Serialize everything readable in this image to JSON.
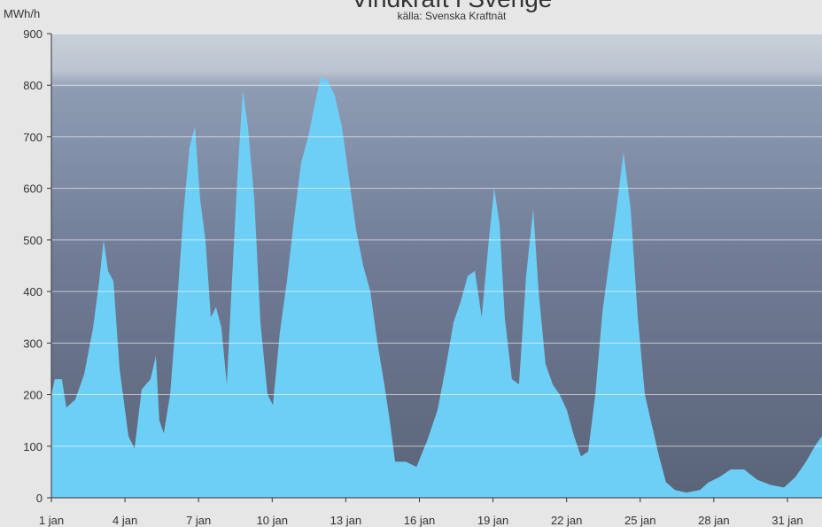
{
  "chart_data": {
    "type": "area",
    "title": "Vindkraft i Sverige",
    "subtitle": "källa: Svenska Kraftnät",
    "y_label": "MWh/h",
    "color": "#6dcff6",
    "grid": true,
    "x": [
      1.0,
      1.14,
      1.43,
      1.61,
      1.97,
      2.34,
      2.7,
      2.95,
      3.13,
      3.31,
      3.53,
      3.78,
      4.14,
      4.39,
      4.68,
      5.04,
      5.26,
      5.4,
      5.58,
      5.84,
      6.13,
      6.38,
      6.63,
      6.85,
      7.06,
      7.28,
      7.5,
      7.71,
      7.93,
      8.15,
      8.36,
      8.58,
      8.8,
      9.01,
      9.27,
      9.52,
      9.81,
      10.03,
      10.31,
      10.6,
      10.89,
      11.18,
      11.47,
      11.72,
      11.97,
      12.26,
      12.55,
      12.84,
      13.13,
      13.42,
      13.71,
      14.0,
      14.29,
      14.57,
      14.79,
      15.01,
      15.45,
      15.88,
      16.31,
      16.74,
      17.1,
      17.39,
      17.68,
      17.97,
      18.26,
      18.54,
      18.83,
      19.05,
      19.27,
      19.48,
      19.77,
      20.06,
      20.35,
      20.64,
      20.86,
      21.14,
      21.43,
      21.72,
      22.01,
      22.3,
      22.59,
      22.88,
      23.17,
      23.46,
      23.74,
      24.03,
      24.32,
      24.61,
      24.9,
      25.19,
      25.48,
      25.77,
      26.05,
      26.42,
      26.88,
      27.43,
      27.79,
      28.22,
      28.69,
      29.23,
      29.77,
      30.31,
      30.86,
      31.32,
      31.76,
      32.12,
      32.41
    ],
    "values": [
      200,
      230,
      230,
      175,
      190,
      240,
      330,
      420,
      500,
      440,
      420,
      250,
      120,
      95,
      210,
      230,
      275,
      150,
      125,
      200,
      380,
      550,
      680,
      720,
      580,
      500,
      350,
      370,
      330,
      220,
      420,
      620,
      790,
      720,
      580,
      340,
      200,
      180,
      320,
      420,
      540,
      650,
      700,
      760,
      815,
      810,
      780,
      720,
      620,
      520,
      450,
      400,
      300,
      220,
      150,
      70,
      70,
      60,
      110,
      170,
      260,
      340,
      380,
      430,
      440,
      350,
      500,
      600,
      530,
      350,
      230,
      220,
      430,
      560,
      400,
      260,
      220,
      200,
      170,
      120,
      80,
      90,
      200,
      360,
      460,
      560,
      670,
      560,
      350,
      200,
      140,
      80,
      30,
      15,
      10,
      15,
      30,
      40,
      55,
      55,
      35,
      25,
      20,
      40,
      70,
      100,
      120
    ],
    "xlim": [
      1,
      32.41
    ],
    "xticks": [
      {
        "value": 1,
        "label": "1 jan"
      },
      {
        "value": 4,
        "label": "4 jan"
      },
      {
        "value": 7,
        "label": "7 jan"
      },
      {
        "value": 10,
        "label": "10 jan"
      },
      {
        "value": 13,
        "label": "13 jan"
      },
      {
        "value": 16,
        "label": "16 jan"
      },
      {
        "value": 19,
        "label": "19 jan"
      },
      {
        "value": 22,
        "label": "22 jan"
      },
      {
        "value": 25,
        "label": "25 jan"
      },
      {
        "value": 28,
        "label": "28 jan"
      },
      {
        "value": 31,
        "label": "31 jan"
      }
    ],
    "ylim": [
      0,
      900
    ],
    "yticks": [
      0,
      100,
      200,
      300,
      400,
      500,
      600,
      700,
      800,
      900
    ]
  }
}
